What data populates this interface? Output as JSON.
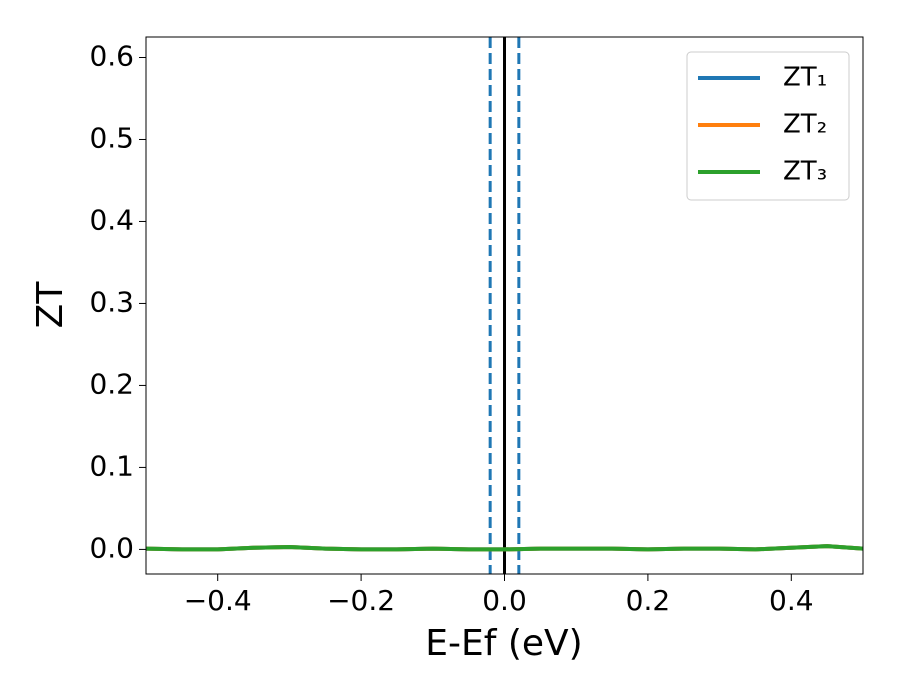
{
  "chart_data": {
    "type": "line",
    "xlabel": "E-Ef (eV)",
    "ylabel": "ZT",
    "x": [
      -0.5,
      -0.45,
      -0.4,
      -0.35,
      -0.3,
      -0.25,
      -0.2,
      -0.15,
      -0.1,
      -0.05,
      0,
      0.05,
      0.1,
      0.15,
      0.2,
      0.25,
      0.3,
      0.35,
      0.4,
      0.45,
      0.5
    ],
    "series": [
      {
        "name": "ZT₁",
        "color": "#1f77b4",
        "values": [
          0.001,
          0.0,
          0.0,
          0.002,
          0.003,
          0.001,
          0.0,
          0.0,
          0.001,
          0.0,
          0.0,
          0.001,
          0.001,
          0.001,
          0.0,
          0.001,
          0.001,
          0.0,
          0.002,
          0.004,
          0.001
        ]
      },
      {
        "name": "ZT₂",
        "color": "#ff7f0e",
        "values": [
          0.001,
          0.0,
          0.0,
          0.002,
          0.003,
          0.001,
          0.0,
          0.0,
          0.001,
          0.0,
          0.0,
          0.001,
          0.001,
          0.001,
          0.0,
          0.001,
          0.001,
          0.0,
          0.002,
          0.004,
          0.001
        ]
      },
      {
        "name": "ZT₃",
        "color": "#2ca02c",
        "values": [
          0.001,
          0.0,
          0.0,
          0.002,
          0.003,
          0.001,
          0.0,
          0.0,
          0.001,
          0.0,
          0.0,
          0.001,
          0.001,
          0.001,
          0.0,
          0.001,
          0.001,
          0.0,
          0.002,
          0.004,
          0.001
        ]
      }
    ],
    "vlines": [
      {
        "x": -0.02,
        "color": "#1f77b4",
        "dashed": true
      },
      {
        "x": 0.02,
        "color": "#1f77b4",
        "dashed": true
      },
      {
        "x": 0,
        "color": "#000000",
        "dashed": false
      }
    ],
    "xlim": [
      -0.5,
      0.5
    ],
    "xticks": [
      {
        "value": -0.4,
        "label": "−0.4"
      },
      {
        "value": -0.2,
        "label": "−0.2"
      },
      {
        "value": 0.0,
        "label": "0.0"
      },
      0.2,
      0.4
    ],
    "ylim": [
      -0.03,
      0.625
    ],
    "yticks": [
      {
        "value": 0.0,
        "label": "0.0"
      },
      0.1,
      0.2,
      0.3,
      0.4,
      0.5,
      0.6
    ],
    "legend": "upper right",
    "grid": false
  }
}
